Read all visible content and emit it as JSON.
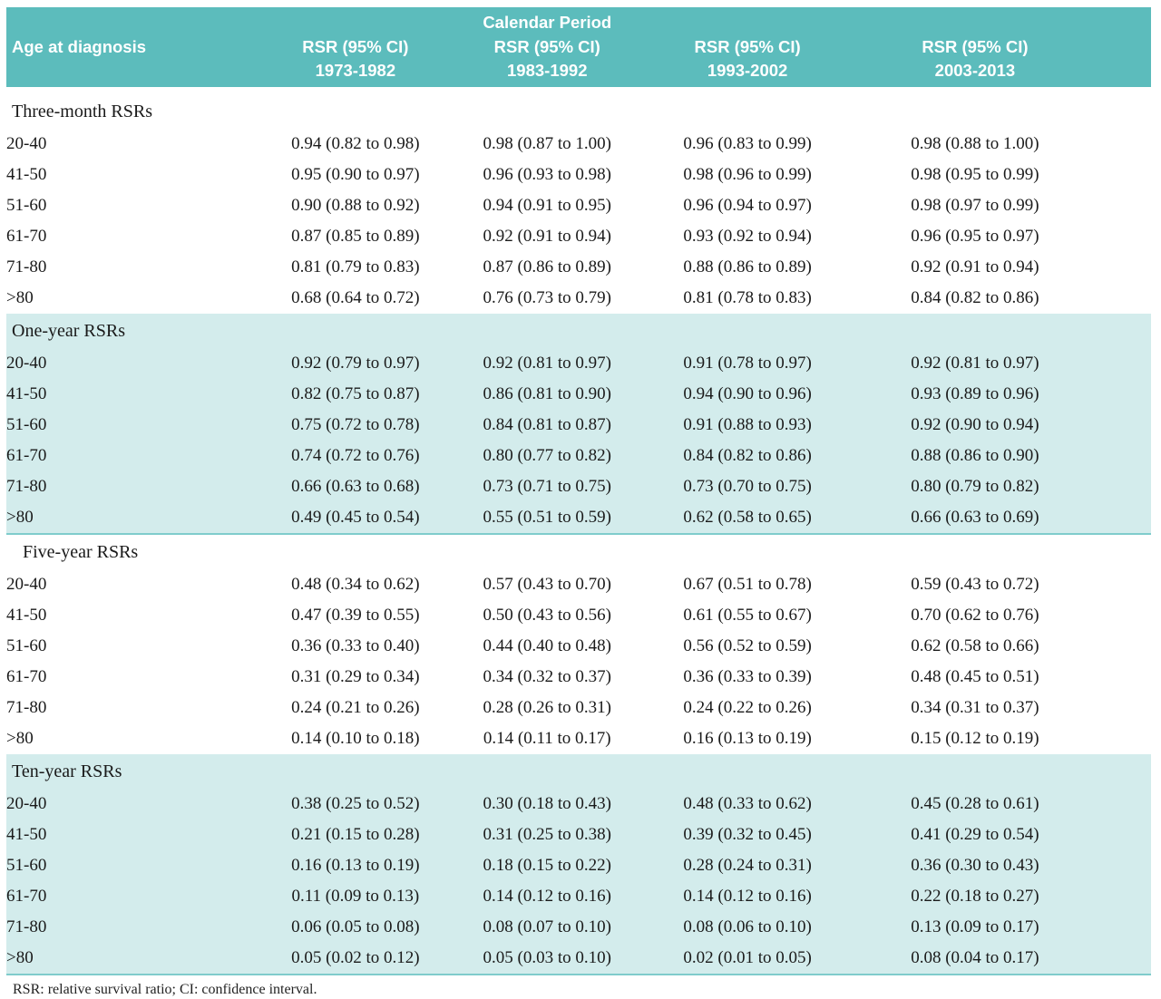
{
  "colors": {
    "header_bg": "#5cbcbc",
    "band_bg": "#d3ecec",
    "rule": "#7fcccc"
  },
  "table": {
    "header": {
      "group_title": "Calendar Period",
      "row_label_header": "Age at diagnosis",
      "col_header": "RSR (95% CI)",
      "periods": [
        "1973-1982",
        "1983-1992",
        "1993-2002",
        "2003-2013"
      ]
    },
    "sections": [
      {
        "label": "Three-month RSRs",
        "shaded": false,
        "rows": [
          {
            "age": "20-40",
            "values": [
              "0.94 (0.82 to 0.98)",
              "0.98 (0.87 to 1.00)",
              "0.96 (0.83 to 0.99)",
              "0.98 (0.88 to 1.00)"
            ]
          },
          {
            "age": "41-50",
            "values": [
              "0.95 (0.90 to 0.97)",
              "0.96 (0.93 to 0.98)",
              "0.98 (0.96 to 0.99)",
              "0.98 (0.95 to 0.99)"
            ]
          },
          {
            "age": "51-60",
            "values": [
              "0.90 (0.88 to 0.92)",
              "0.94 (0.91 to 0.95)",
              "0.96 (0.94 to 0.97)",
              "0.98 (0.97 to 0.99)"
            ]
          },
          {
            "age": "61-70",
            "values": [
              "0.87 (0.85 to 0.89)",
              "0.92 (0.91 to 0.94)",
              "0.93 (0.92 to 0.94)",
              "0.96 (0.95 to 0.97)"
            ]
          },
          {
            "age": "71-80",
            "values": [
              "0.81 (0.79 to 0.83)",
              "0.87 (0.86 to 0.89)",
              "0.88 (0.86 to 0.89)",
              "0.92 (0.91 to 0.94)"
            ]
          },
          {
            "age": ">80",
            "values": [
              "0.68 (0.64 to 0.72)",
              "0.76 (0.73 to 0.79)",
              "0.81 (0.78 to 0.83)",
              "0.84 (0.82 to 0.86)"
            ]
          }
        ]
      },
      {
        "label": "One-year RSRs",
        "shaded": true,
        "rows": [
          {
            "age": "20-40",
            "values": [
              "0.92 (0.79 to 0.97)",
              "0.92 (0.81 to 0.97)",
              "0.91 (0.78 to 0.97)",
              "0.92 (0.81 to 0.97)"
            ]
          },
          {
            "age": "41-50",
            "values": [
              "0.82 (0.75 to 0.87)",
              "0.86 (0.81 to 0.90)",
              "0.94 (0.90 to 0.96)",
              "0.93 (0.89 to 0.96)"
            ]
          },
          {
            "age": "51-60",
            "values": [
              "0.75 (0.72 to 0.78)",
              "0.84 (0.81 to 0.87)",
              "0.91 (0.88 to 0.93)",
              "0.92 (0.90 to 0.94)"
            ]
          },
          {
            "age": "61-70",
            "values": [
              "0.74 (0.72 to 0.76)",
              "0.80 (0.77 to 0.82)",
              "0.84 (0.82 to 0.86)",
              "0.88 (0.86 to 0.90)"
            ]
          },
          {
            "age": "71-80",
            "values": [
              "0.66 (0.63 to 0.68)",
              "0.73 (0.71 to 0.75)",
              "0.73 (0.70 to 0.75)",
              "0.80 (0.79 to 0.82)"
            ]
          },
          {
            "age": ">80",
            "values": [
              "0.49 (0.45 to 0.54)",
              "0.55 (0.51 to 0.59)",
              "0.62 (0.58 to 0.65)",
              "0.66 (0.63 to 0.69)"
            ]
          }
        ]
      },
      {
        "label": "Five-year RSRs",
        "shaded": false,
        "rows": [
          {
            "age": "20-40",
            "values": [
              "0.48 (0.34 to 0.62)",
              "0.57 (0.43 to 0.70)",
              "0.67 (0.51 to 0.78)",
              "0.59 (0.43 to 0.72)"
            ]
          },
          {
            "age": "41-50",
            "values": [
              "0.47 (0.39 to 0.55)",
              "0.50 (0.43 to 0.56)",
              "0.61 (0.55 to 0.67)",
              "0.70 (0.62 to 0.76)"
            ]
          },
          {
            "age": "51-60",
            "values": [
              "0.36 (0.33 to 0.40)",
              "0.44 (0.40 to 0.48)",
              "0.56 (0.52 to 0.59)",
              "0.62 (0.58 to 0.66)"
            ]
          },
          {
            "age": "61-70",
            "values": [
              "0.31 (0.29 to 0.34)",
              "0.34 (0.32 to 0.37)",
              "0.36 (0.33 to 0.39)",
              "0.48 (0.45 to 0.51)"
            ]
          },
          {
            "age": "71-80",
            "values": [
              "0.24 (0.21 to 0.26)",
              "0.28 (0.26 to 0.31)",
              "0.24 (0.22 to 0.26)",
              "0.34 (0.31 to 0.37)"
            ]
          },
          {
            "age": ">80",
            "values": [
              "0.14 (0.10 to 0.18)",
              "0.14 (0.11 to 0.17)",
              "0.16 (0.13 to 0.19)",
              "0.15 (0.12 to 0.19)"
            ]
          }
        ]
      },
      {
        "label": "Ten-year RSRs",
        "shaded": true,
        "rows": [
          {
            "age": "20-40",
            "values": [
              "0.38 (0.25 to 0.52)",
              "0.30 (0.18 to 0.43)",
              "0.48 (0.33 to 0.62)",
              "0.45 (0.28 to 0.61)"
            ]
          },
          {
            "age": "41-50",
            "values": [
              "0.21 (0.15 to 0.28)",
              "0.31 (0.25 to 0.38)",
              "0.39 (0.32 to 0.45)",
              "0.41 (0.29 to 0.54)"
            ]
          },
          {
            "age": "51-60",
            "values": [
              "0.16 (0.13 to 0.19)",
              "0.18 (0.15 to 0.22)",
              "0.28 (0.24 to 0.31)",
              "0.36 (0.30 to 0.43)"
            ]
          },
          {
            "age": "61-70",
            "values": [
              "0.11 (0.09 to 0.13)",
              "0.14 (0.12 to 0.16)",
              "0.14 (0.12 to 0.16)",
              "0.22 (0.18 to 0.27)"
            ]
          },
          {
            "age": "71-80",
            "values": [
              "0.06 (0.05 to 0.08)",
              "0.08 (0.07 to 0.10)",
              "0.08 (0.06 to 0.10)",
              "0.13 (0.09 to 0.17)"
            ]
          },
          {
            "age": ">80",
            "values": [
              "0.05 (0.02 to 0.12)",
              "0.05 (0.03 to 0.10)",
              "0.02 (0.01 to 0.05)",
              "0.08 (0.04 to 0.17)"
            ]
          }
        ]
      }
    ],
    "footnote": "RSR: relative survival ratio; CI: confidence interval."
  }
}
